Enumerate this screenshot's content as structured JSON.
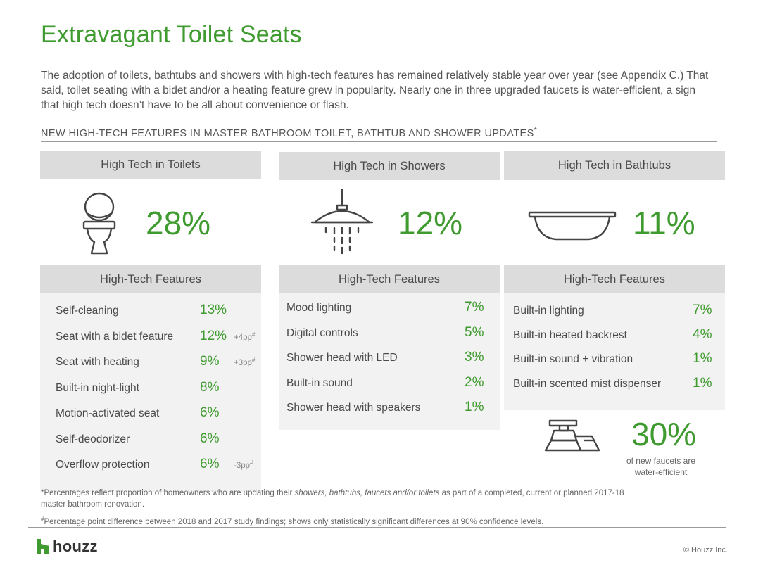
{
  "title": "Extravagant Toilet Seats",
  "intro": "The adoption of toilets, bathtubs and showers with high-tech features has remained relatively stable year over year (see Appendix C.) That said, toilet seating with a bidet and/or a heating feature grew in popularity. Nearly one in three upgraded faucets is water-efficient, a sign that high tech doesn’t have to be all about convenience or flash.",
  "section_title": "NEW HIGH-TECH FEATURES IN MASTER BATHROOM TOILET, BATHTUB AND SHOWER UPDATES",
  "section_title_mark": "*",
  "features_header": "High-Tech Features",
  "toilets": {
    "header": "High Tech in Toilets",
    "value": "28%",
    "icon": "toilet-icon",
    "items": [
      {
        "label": "Self-cleaning",
        "pct": "13%",
        "diff": ""
      },
      {
        "label": "Seat with a bidet feature",
        "pct": "12%",
        "diff": "+4pp"
      },
      {
        "label": "Seat with heating",
        "pct": "9%",
        "diff": "+3pp"
      },
      {
        "label": "Built-in night-light",
        "pct": "8%",
        "diff": ""
      },
      {
        "label": "Motion-activated seat",
        "pct": "6%",
        "diff": ""
      },
      {
        "label": "Self-deodorizer",
        "pct": "6%",
        "diff": ""
      },
      {
        "label": "Overflow protection",
        "pct": "6%",
        "diff": "-3pp"
      }
    ]
  },
  "showers": {
    "header": "High Tech in Showers",
    "value": "12%",
    "icon": "shower-head-icon",
    "items": [
      {
        "label": "Mood lighting",
        "pct": "7%"
      },
      {
        "label": "Digital controls",
        "pct": "5%"
      },
      {
        "label": "Shower head with LED",
        "pct": "3%"
      },
      {
        "label": "Built-in sound",
        "pct": "2%"
      },
      {
        "label": "Shower head with speakers",
        "pct": "1%"
      }
    ]
  },
  "bathtubs": {
    "header": "High Tech in Bathtubs",
    "value": "11%",
    "icon": "bathtub-icon",
    "items": [
      {
        "label": "Built-in lighting",
        "pct": "7%"
      },
      {
        "label": "Built-in heated backrest",
        "pct": "4%"
      },
      {
        "label": "Built-in sound + vibration",
        "pct": "1%"
      },
      {
        "label": "Built-in scented mist dispenser",
        "pct": "1%"
      }
    ]
  },
  "faucets": {
    "value": "30%",
    "caption_line1": "of new faucets are",
    "caption_line2": "water-efficient",
    "icon": "faucet-icon"
  },
  "diff_mark": "#",
  "footnote1_a": "*Percentages reflect proportion of homeowners who are updating their ",
  "footnote1_em": "showers, bathtubs, faucets and/or toilets",
  "footnote1_b": " as part of a completed, current or planned 2017-18",
  "footnote1_c": "master bathroom renovation.",
  "footnote2_mark": "#",
  "footnote2": "Percentage point difference between 2018 and 2017 study findings; shows only statistically significant differences at 90% confidence levels.",
  "logo_text": "houzz",
  "copyright": "© Houzz Inc.",
  "colors": {
    "accent": "#3f9b2f",
    "header_bg": "#dcdcdc",
    "panel_bg": "#f2f2f2"
  }
}
